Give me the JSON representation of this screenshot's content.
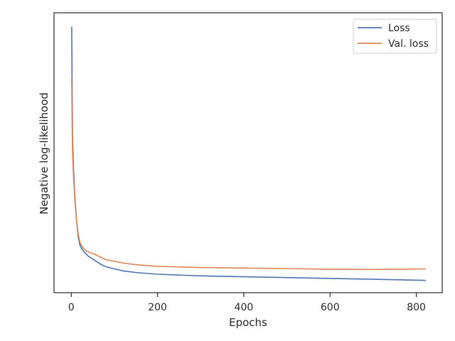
{
  "chart_data": {
    "type": "line",
    "title": "",
    "xlabel": "Epochs",
    "ylabel": "Negative log-likelihood",
    "xlim": [
      -40,
      860
    ],
    "ylim": [
      0,
      1
    ],
    "xticks": [
      0,
      200,
      400,
      600,
      800
    ],
    "yticks_visible": false,
    "grid": false,
    "legend_position": "top-right",
    "series": [
      {
        "name": "Loss",
        "color": "#4c72b0",
        "x": [
          1,
          2,
          3,
          5,
          8,
          12,
          16,
          20,
          25,
          30,
          40,
          50,
          60,
          70,
          80,
          100,
          120,
          150,
          200,
          250,
          300,
          400,
          500,
          600,
          700,
          822
        ],
        "values": [
          0.95,
          0.72,
          0.55,
          0.45,
          0.35,
          0.26,
          0.2,
          0.17,
          0.155,
          0.145,
          0.13,
          0.12,
          0.11,
          0.1,
          0.093,
          0.085,
          0.078,
          0.072,
          0.066,
          0.063,
          0.06,
          0.057,
          0.054,
          0.051,
          0.048,
          0.044
        ]
      },
      {
        "name": "Val. loss",
        "color": "#dd8452",
        "x": [
          1,
          2,
          3,
          5,
          8,
          12,
          16,
          20,
          25,
          30,
          40,
          50,
          60,
          70,
          80,
          100,
          120,
          150,
          200,
          250,
          300,
          400,
          500,
          600,
          700,
          822
        ],
        "values": [
          0.77,
          0.6,
          0.5,
          0.42,
          0.34,
          0.26,
          0.21,
          0.18,
          0.165,
          0.155,
          0.145,
          0.14,
          0.133,
          0.125,
          0.118,
          0.112,
          0.106,
          0.1,
          0.094,
          0.092,
          0.09,
          0.088,
          0.086,
          0.084,
          0.083,
          0.085
        ]
      }
    ]
  }
}
